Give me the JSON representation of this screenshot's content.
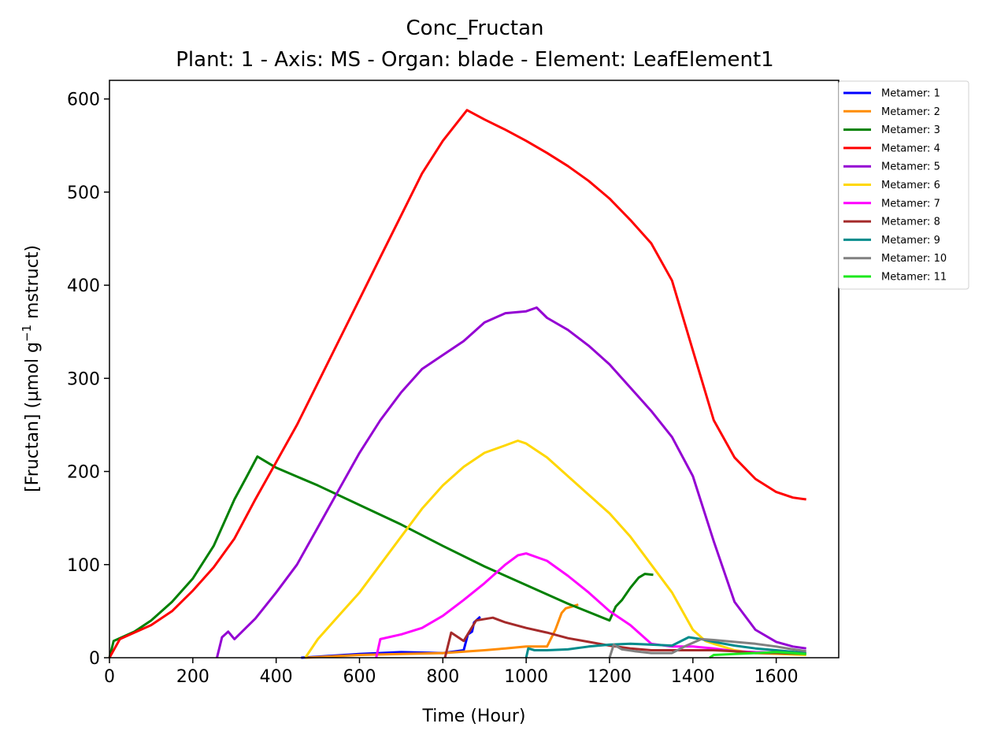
{
  "chart_data": {
    "type": "line",
    "title": "Conc_Fructan",
    "subtitle": "Plant: 1 - Axis: MS - Organ: blade - Element: LeafElement1",
    "xlabel": "Time (Hour)",
    "ylabel_prefix": "[Fructan] (µmol g",
    "ylabel_sup": "−1",
    "ylabel_suffix": " mstruct)",
    "xlim": [
      0,
      1750
    ],
    "ylim": [
      0,
      620
    ],
    "xticks": [
      0,
      200,
      400,
      600,
      800,
      1000,
      1200,
      1400,
      1600
    ],
    "yticks": [
      0,
      100,
      200,
      300,
      400,
      500,
      600
    ],
    "legend_position": "upper right, outside plot",
    "series": [
      {
        "name": "Metamer: 1",
        "color": "#0000ff",
        "points": [
          [
            460,
            0
          ],
          [
            600,
            4
          ],
          [
            700,
            6
          ],
          [
            800,
            5
          ],
          [
            850,
            8
          ],
          [
            860,
            25
          ],
          [
            870,
            28
          ],
          [
            875,
            38
          ],
          [
            885,
            42
          ],
          [
            890,
            44
          ]
        ]
      },
      {
        "name": "Metamer: 2",
        "color": "#ff8c00",
        "points": [
          [
            470,
            0
          ],
          [
            600,
            3
          ],
          [
            700,
            4
          ],
          [
            800,
            5
          ],
          [
            900,
            8
          ],
          [
            950,
            10
          ],
          [
            1000,
            12
          ],
          [
            1050,
            12
          ],
          [
            1070,
            30
          ],
          [
            1085,
            48
          ],
          [
            1095,
            53
          ],
          [
            1110,
            55
          ],
          [
            1125,
            57
          ]
        ]
      },
      {
        "name": "Metamer: 3",
        "color": "#008000",
        "points": [
          [
            0,
            0
          ],
          [
            10,
            18
          ],
          [
            30,
            22
          ],
          [
            60,
            28
          ],
          [
            100,
            40
          ],
          [
            150,
            60
          ],
          [
            200,
            85
          ],
          [
            250,
            120
          ],
          [
            300,
            170
          ],
          [
            330,
            195
          ],
          [
            355,
            216
          ],
          [
            400,
            204
          ],
          [
            500,
            185
          ],
          [
            600,
            164
          ],
          [
            700,
            143
          ],
          [
            800,
            120
          ],
          [
            900,
            98
          ],
          [
            1000,
            78
          ],
          [
            1100,
            58
          ],
          [
            1200,
            40
          ],
          [
            1215,
            55
          ],
          [
            1230,
            62
          ],
          [
            1250,
            75
          ],
          [
            1270,
            86
          ],
          [
            1285,
            90
          ],
          [
            1305,
            89
          ]
        ]
      },
      {
        "name": "Metamer: 4",
        "color": "#ff0000",
        "points": [
          [
            0,
            0
          ],
          [
            25,
            20
          ],
          [
            50,
            25
          ],
          [
            100,
            35
          ],
          [
            150,
            50
          ],
          [
            200,
            72
          ],
          [
            250,
            97
          ],
          [
            300,
            128
          ],
          [
            350,
            170
          ],
          [
            400,
            210
          ],
          [
            450,
            250
          ],
          [
            500,
            295
          ],
          [
            550,
            340
          ],
          [
            600,
            385
          ],
          [
            650,
            430
          ],
          [
            700,
            475
          ],
          [
            750,
            520
          ],
          [
            800,
            555
          ],
          [
            858,
            588
          ],
          [
            900,
            578
          ],
          [
            950,
            567
          ],
          [
            1000,
            555
          ],
          [
            1050,
            542
          ],
          [
            1100,
            528
          ],
          [
            1150,
            512
          ],
          [
            1200,
            493
          ],
          [
            1250,
            470
          ],
          [
            1300,
            445
          ],
          [
            1350,
            405
          ],
          [
            1400,
            330
          ],
          [
            1450,
            255
          ],
          [
            1500,
            215
          ],
          [
            1550,
            192
          ],
          [
            1600,
            178
          ],
          [
            1640,
            172
          ],
          [
            1672,
            170
          ]
        ]
      },
      {
        "name": "Metamer: 5",
        "color": "#9400d3",
        "points": [
          [
            258,
            0
          ],
          [
            270,
            22
          ],
          [
            285,
            28
          ],
          [
            300,
            20
          ],
          [
            350,
            42
          ],
          [
            400,
            70
          ],
          [
            450,
            100
          ],
          [
            500,
            140
          ],
          [
            550,
            180
          ],
          [
            600,
            220
          ],
          [
            650,
            255
          ],
          [
            700,
            285
          ],
          [
            750,
            310
          ],
          [
            800,
            325
          ],
          [
            850,
            340
          ],
          [
            900,
            360
          ],
          [
            950,
            370
          ],
          [
            1000,
            372
          ],
          [
            1025,
            376
          ],
          [
            1050,
            365
          ],
          [
            1100,
            352
          ],
          [
            1150,
            335
          ],
          [
            1200,
            315
          ],
          [
            1250,
            290
          ],
          [
            1300,
            265
          ],
          [
            1350,
            237
          ],
          [
            1400,
            195
          ],
          [
            1450,
            125
          ],
          [
            1500,
            60
          ],
          [
            1550,
            30
          ],
          [
            1600,
            17
          ],
          [
            1640,
            12
          ],
          [
            1672,
            10
          ]
        ]
      },
      {
        "name": "Metamer: 6",
        "color": "#ffd700",
        "points": [
          [
            470,
            0
          ],
          [
            500,
            20
          ],
          [
            550,
            45
          ],
          [
            600,
            70
          ],
          [
            650,
            100
          ],
          [
            700,
            130
          ],
          [
            750,
            160
          ],
          [
            800,
            185
          ],
          [
            850,
            205
          ],
          [
            900,
            220
          ],
          [
            950,
            228
          ],
          [
            980,
            233
          ],
          [
            1000,
            230
          ],
          [
            1050,
            215
          ],
          [
            1100,
            195
          ],
          [
            1150,
            175
          ],
          [
            1200,
            155
          ],
          [
            1250,
            130
          ],
          [
            1300,
            100
          ],
          [
            1350,
            70
          ],
          [
            1400,
            30
          ],
          [
            1430,
            18
          ],
          [
            1450,
            15
          ],
          [
            1500,
            8
          ],
          [
            1550,
            5
          ],
          [
            1672,
            3
          ]
        ]
      },
      {
        "name": "Metamer: 7",
        "color": "#ff00ff",
        "points": [
          [
            640,
            0
          ],
          [
            650,
            20
          ],
          [
            700,
            25
          ],
          [
            750,
            32
          ],
          [
            800,
            45
          ],
          [
            850,
            62
          ],
          [
            900,
            80
          ],
          [
            950,
            100
          ],
          [
            980,
            110
          ],
          [
            1000,
            112
          ],
          [
            1050,
            104
          ],
          [
            1100,
            88
          ],
          [
            1150,
            70
          ],
          [
            1200,
            50
          ],
          [
            1250,
            35
          ],
          [
            1300,
            15
          ],
          [
            1350,
            12
          ],
          [
            1400,
            12
          ],
          [
            1450,
            10
          ],
          [
            1500,
            7
          ],
          [
            1550,
            6
          ],
          [
            1672,
            5
          ]
        ]
      },
      {
        "name": "Metamer: 8",
        "color": "#a52a2a",
        "points": [
          [
            805,
            0
          ],
          [
            820,
            27
          ],
          [
            850,
            18
          ],
          [
            880,
            40
          ],
          [
            920,
            43
          ],
          [
            950,
            38
          ],
          [
            1000,
            32
          ],
          [
            1050,
            27
          ],
          [
            1100,
            21
          ],
          [
            1150,
            17
          ],
          [
            1200,
            13
          ],
          [
            1250,
            10
          ],
          [
            1300,
            8
          ],
          [
            1350,
            8
          ],
          [
            1400,
            8
          ],
          [
            1450,
            8
          ],
          [
            1500,
            7
          ],
          [
            1550,
            5
          ],
          [
            1600,
            5
          ],
          [
            1672,
            4
          ]
        ]
      },
      {
        "name": "Metamer: 9",
        "color": "#008b8b",
        "points": [
          [
            1000,
            0
          ],
          [
            1005,
            10
          ],
          [
            1020,
            8
          ],
          [
            1050,
            8
          ],
          [
            1100,
            9
          ],
          [
            1150,
            12
          ],
          [
            1200,
            14
          ],
          [
            1250,
            15
          ],
          [
            1300,
            14
          ],
          [
            1350,
            13
          ],
          [
            1390,
            22
          ],
          [
            1420,
            20
          ],
          [
            1450,
            17
          ],
          [
            1500,
            13
          ],
          [
            1550,
            10
          ],
          [
            1600,
            8
          ],
          [
            1672,
            5
          ]
        ]
      },
      {
        "name": "Metamer: 10",
        "color": "#808080",
        "points": [
          [
            1200,
            0
          ],
          [
            1210,
            14
          ],
          [
            1230,
            9
          ],
          [
            1260,
            7
          ],
          [
            1300,
            5
          ],
          [
            1350,
            5
          ],
          [
            1380,
            12
          ],
          [
            1420,
            20
          ],
          [
            1450,
            19
          ],
          [
            1500,
            17
          ],
          [
            1550,
            15
          ],
          [
            1600,
            12
          ],
          [
            1640,
            9
          ],
          [
            1672,
            7
          ]
        ]
      },
      {
        "name": "Metamer: 11",
        "color": "#1ee81e",
        "points": [
          [
            1440,
            0
          ],
          [
            1450,
            3
          ],
          [
            1500,
            4
          ],
          [
            1550,
            5
          ],
          [
            1600,
            6
          ],
          [
            1640,
            5
          ],
          [
            1672,
            4
          ]
        ]
      }
    ]
  }
}
